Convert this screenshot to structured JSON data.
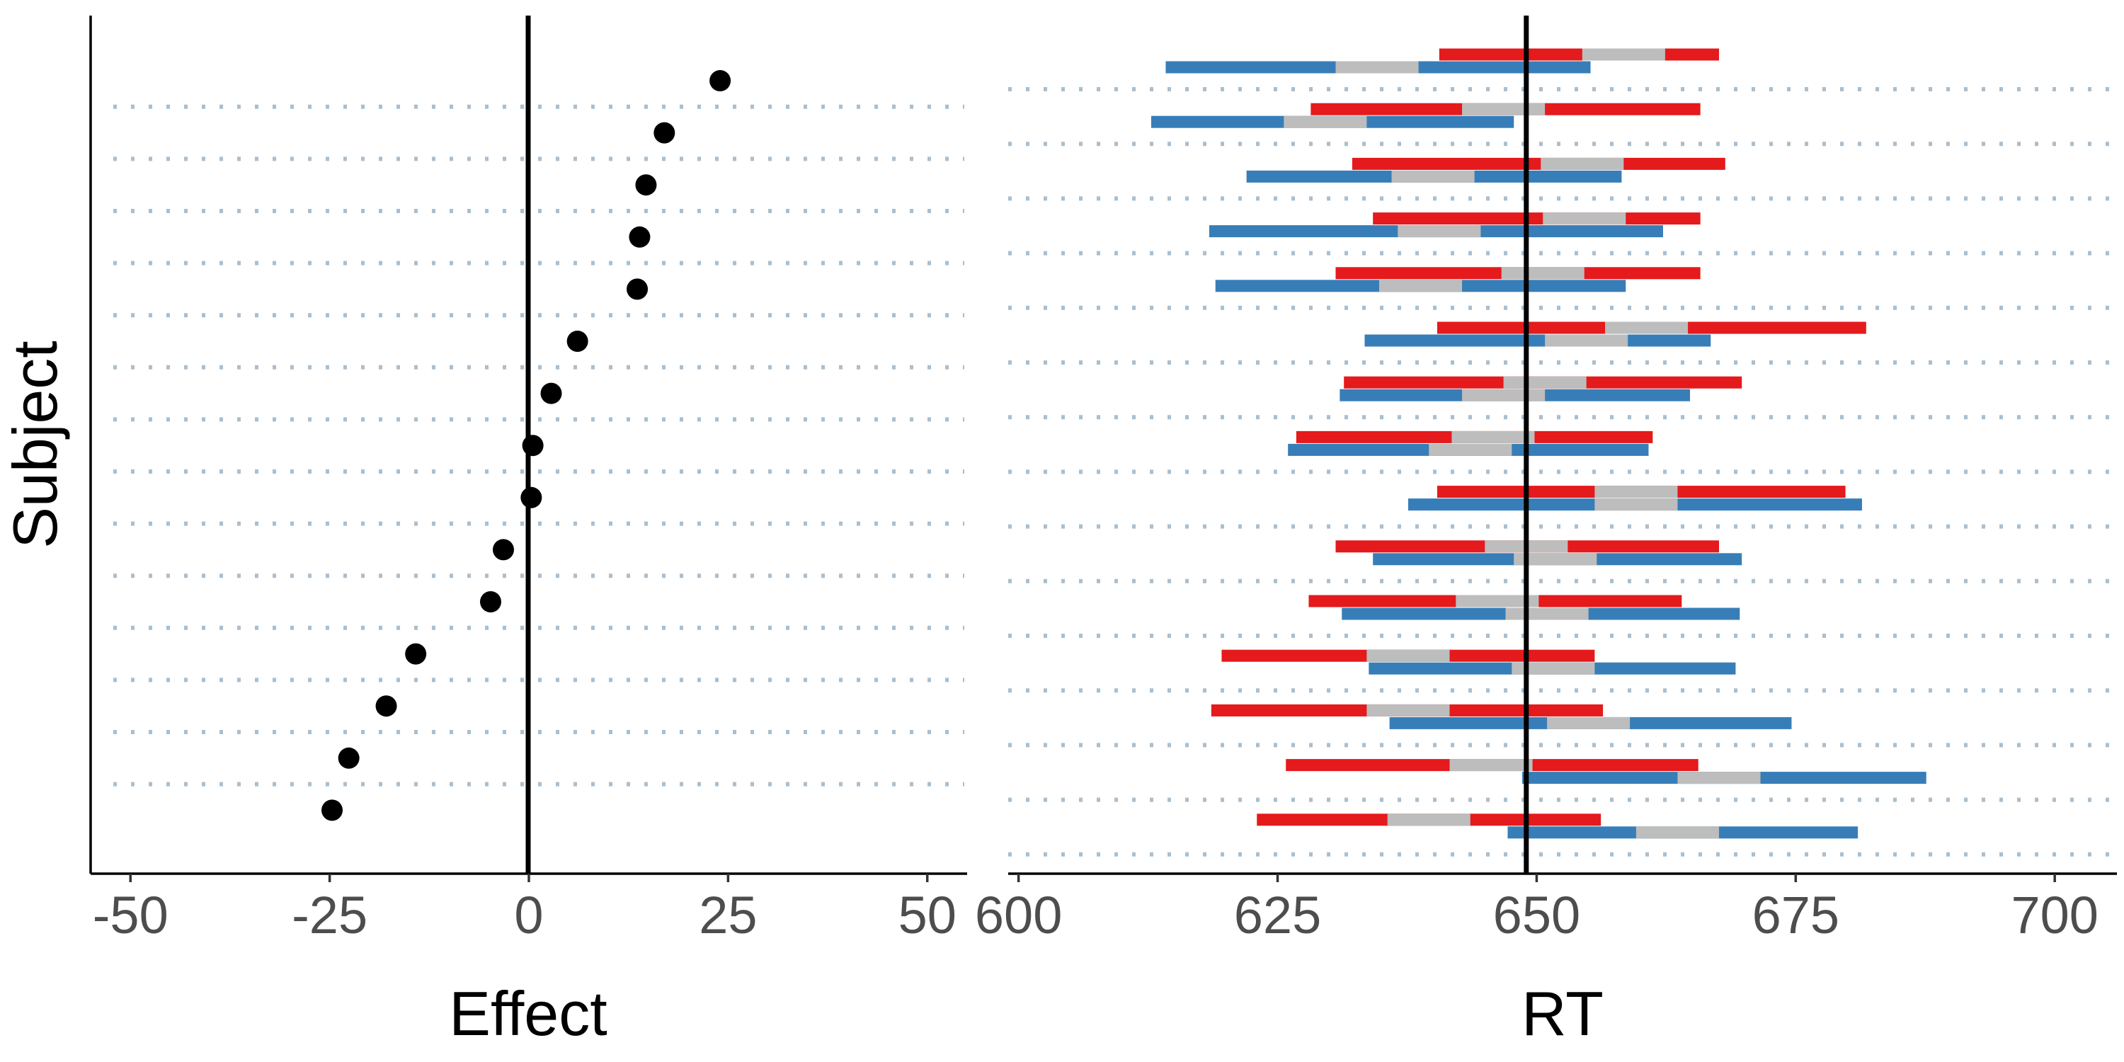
{
  "chart_data": [
    {
      "type": "scatter",
      "ylabel": "Subject",
      "xlabel": "Effect",
      "xlim": [
        -55,
        55
      ],
      "x_ticks": [
        "-50",
        "-25",
        "0",
        "25",
        "50"
      ],
      "x_tick_values": [
        -50,
        -25,
        0,
        25,
        50
      ],
      "reference_line_x": 0,
      "grid": "dotted horizontal lines between subjects",
      "point_color": "#000000",
      "subjects": 15,
      "effects": [
        24.0,
        17.0,
        14.7,
        13.9,
        13.6,
        6.1,
        2.8,
        0.5,
        0.3,
        -3.2,
        -4.8,
        -14.2,
        -17.9,
        -22.6,
        -24.7
      ]
    },
    {
      "type": "range",
      "xlabel": "RT",
      "xlim": [
        599,
        706
      ],
      "x_ticks": [
        "600",
        "625",
        "650",
        "675",
        "700"
      ],
      "x_tick_values": [
        600,
        625,
        650,
        675,
        700
      ],
      "reference_line_x": 649,
      "grid": "dotted horizontal lines between subjects",
      "colors": {
        "condition_a": "#e41a1c",
        "condition_b": "#377eb8",
        "overlap": "#bdbdbd"
      },
      "subjects": [
        {
          "a": [
            640.6,
            658.4,
            667.6
          ],
          "b": [
            614.2,
            634.6,
            655.2
          ]
        },
        {
          "a": [
            628.2,
            646.8,
            665.8
          ],
          "b": [
            612.8,
            629.6,
            647.8
          ]
        },
        {
          "a": [
            632.2,
            654.4,
            668.2
          ],
          "b": [
            622.0,
            640.0,
            658.2
          ]
        },
        {
          "a": [
            634.2,
            654.6,
            665.8
          ],
          "b": [
            618.4,
            640.6,
            662.2
          ]
        },
        {
          "a": [
            630.6,
            650.6,
            665.8
          ],
          "b": [
            619.0,
            638.8,
            658.6
          ]
        },
        {
          "a": [
            640.4,
            660.6,
            681.8
          ],
          "b": [
            633.4,
            654.8,
            666.8
          ]
        },
        {
          "a": [
            631.4,
            650.8,
            669.8
          ],
          "b": [
            631.0,
            646.8,
            664.8
          ]
        },
        {
          "a": [
            626.8,
            645.8,
            661.2
          ],
          "b": [
            626.0,
            643.6,
            660.8
          ]
        },
        {
          "a": [
            640.4,
            659.6,
            679.8
          ],
          "b": [
            637.6,
            659.6,
            681.4
          ]
        },
        {
          "a": [
            630.6,
            649.0,
            667.6
          ],
          "b": [
            634.2,
            651.8,
            669.8
          ]
        },
        {
          "a": [
            628.0,
            646.2,
            664.0
          ],
          "b": [
            631.2,
            651.0,
            669.6
          ]
        },
        {
          "a": [
            619.6,
            637.6,
            655.6
          ],
          "b": [
            633.8,
            651.6,
            669.2
          ]
        },
        {
          "a": [
            618.6,
            637.6,
            656.4
          ],
          "b": [
            635.8,
            655.0,
            674.6
          ]
        },
        {
          "a": [
            625.8,
            645.6,
            665.6
          ],
          "b": [
            648.6,
            667.6,
            687.6
          ]
        },
        {
          "a": [
            623.0,
            639.6,
            656.2
          ],
          "b": [
            647.2,
            663.6,
            681.0
          ]
        }
      ]
    }
  ]
}
